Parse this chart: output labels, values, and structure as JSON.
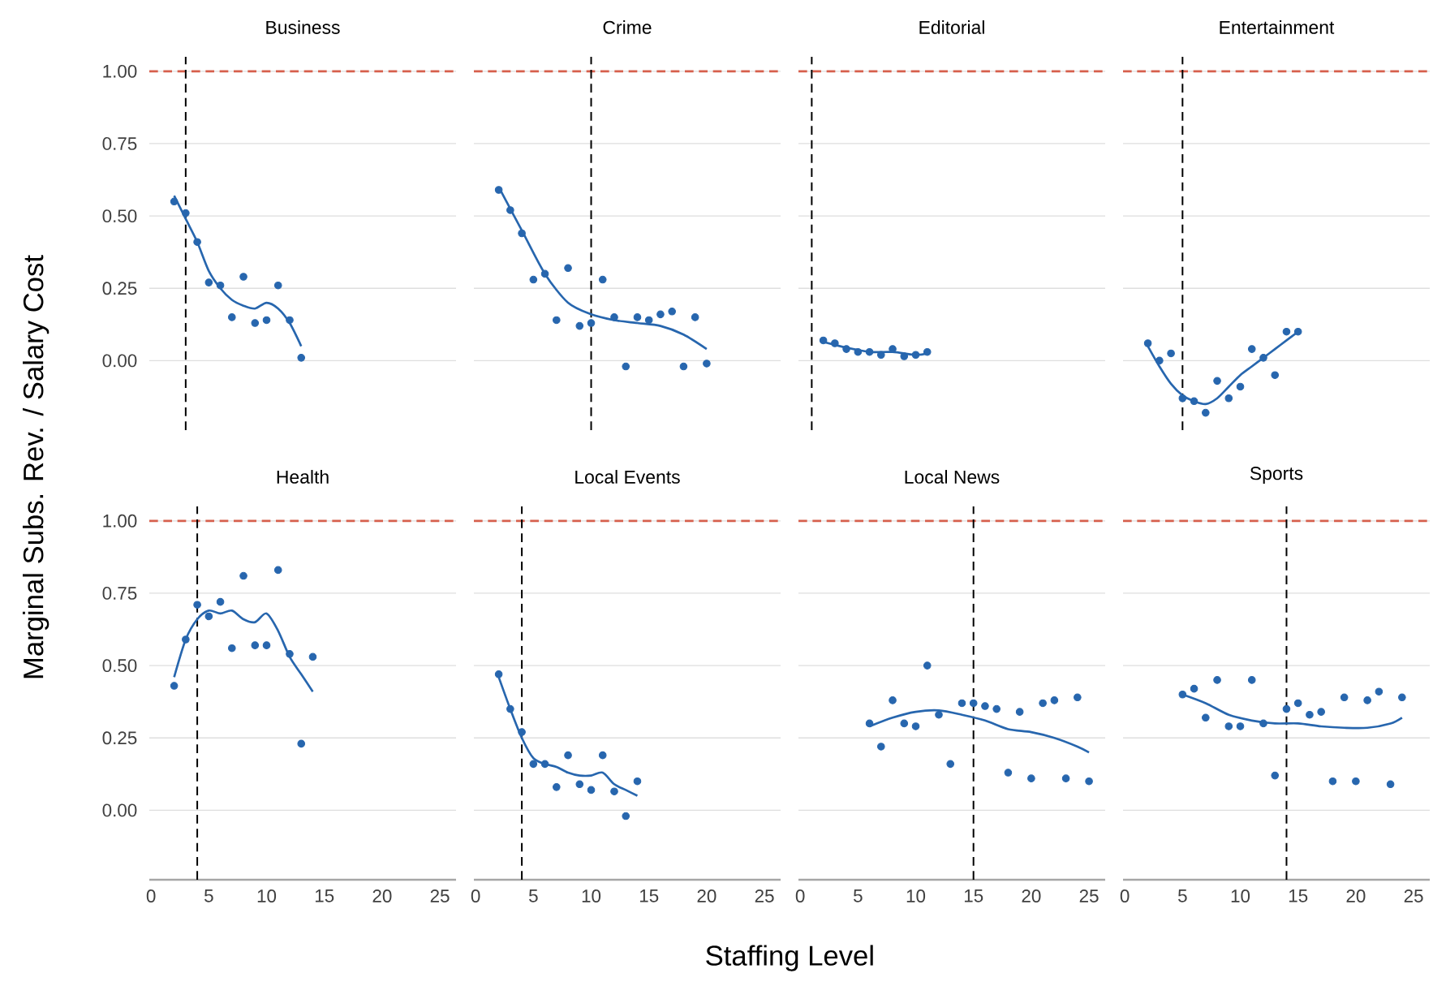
{
  "chart_data": [
    {
      "type": "scatter",
      "title": "Business",
      "ylabel": "Marginal Subs. Rev. / Salary Cost",
      "xlim": [
        -0.15,
        26.4
      ],
      "ylim": [
        -0.24,
        1.05
      ],
      "xticks": [
        0,
        5,
        10,
        15,
        20,
        25
      ],
      "yticks": [
        {
          "value": 0,
          "label": "0.00"
        },
        {
          "value": 0.25,
          "label": "0.25"
        },
        {
          "value": 0.5,
          "label": "0.50"
        },
        {
          "value": 0.75,
          "label": "0.75"
        },
        {
          "value": 1,
          "label": "1.00"
        }
      ],
      "grid": "y",
      "tick_labels": "y",
      "ref_lines": [
        {
          "axis": "y",
          "value": 1,
          "color": "#d6604d",
          "line_style": "dashed"
        },
        {
          "axis": "x",
          "value": 3,
          "color": "#000000",
          "line_style": "dashed"
        }
      ],
      "series": [
        {
          "type": "scatter",
          "color": "#2766ae",
          "marker": "circle",
          "x": [
            2,
            3,
            4,
            5,
            6,
            7,
            8,
            9,
            10,
            11,
            12,
            13
          ],
          "values": [
            0.55,
            0.51,
            0.41,
            0.27,
            0.26,
            0.15,
            0.29,
            0.13,
            0.14,
            0.26,
            0.14,
            0.01
          ]
        },
        {
          "type": "line",
          "color": "#2766ae",
          "marker": "none",
          "line_style": "solid",
          "x": [
            2,
            3,
            4,
            5,
            6,
            7,
            8,
            9,
            10,
            11,
            12,
            13
          ],
          "values": [
            0.57,
            0.49,
            0.41,
            0.31,
            0.25,
            0.21,
            0.19,
            0.18,
            0.2,
            0.18,
            0.13,
            0.05
          ]
        }
      ]
    },
    {
      "type": "scatter",
      "title": "Crime",
      "xlim": [
        -0.15,
        26.4
      ],
      "ylim": [
        -0.24,
        1.05
      ],
      "xticks": [
        0,
        5,
        10,
        15,
        20,
        25
      ],
      "yticks": [
        {
          "value": 0,
          "label": null
        },
        {
          "value": 0.25,
          "label": null
        },
        {
          "value": 0.5,
          "label": null
        },
        {
          "value": 0.75,
          "label": null
        },
        {
          "value": 1,
          "label": null
        }
      ],
      "grid": "y",
      "tick_labels": false,
      "ref_lines": [
        {
          "axis": "y",
          "value": 1,
          "color": "#d6604d",
          "line_style": "dashed"
        },
        {
          "axis": "x",
          "value": 10,
          "color": "#000000",
          "line_style": "dashed"
        }
      ],
      "series": [
        {
          "type": "scatter",
          "color": "#2766ae",
          "marker": "circle",
          "x": [
            2,
            3,
            4,
            5,
            6,
            7,
            8,
            9,
            10,
            11,
            12,
            13,
            14,
            15,
            16,
            17,
            18,
            19,
            20
          ],
          "values": [
            0.59,
            0.52,
            0.44,
            0.28,
            0.3,
            0.14,
            0.32,
            0.12,
            0.13,
            0.28,
            0.15,
            -0.02,
            0.15,
            0.14,
            0.16,
            0.17,
            -0.02,
            0.15,
            -0.01
          ]
        },
        {
          "type": "line",
          "color": "#2766ae",
          "marker": "none",
          "line_style": "solid",
          "x": [
            2,
            4,
            6,
            8,
            10,
            12,
            14,
            16,
            18,
            20
          ],
          "values": [
            0.6,
            0.45,
            0.3,
            0.2,
            0.16,
            0.14,
            0.13,
            0.12,
            0.09,
            0.04
          ]
        }
      ]
    },
    {
      "type": "scatter",
      "title": "Editorial",
      "xlim": [
        -0.15,
        26.4
      ],
      "ylim": [
        -0.24,
        1.05
      ],
      "xticks": [
        0,
        5,
        10,
        15,
        20,
        25
      ],
      "yticks": [
        {
          "value": 0,
          "label": null
        },
        {
          "value": 0.25,
          "label": null
        },
        {
          "value": 0.5,
          "label": null
        },
        {
          "value": 0.75,
          "label": null
        },
        {
          "value": 1,
          "label": null
        }
      ],
      "grid": "y",
      "tick_labels": false,
      "ref_lines": [
        {
          "axis": "y",
          "value": 1,
          "color": "#d6604d",
          "line_style": "dashed"
        },
        {
          "axis": "x",
          "value": 1,
          "color": "#000000",
          "line_style": "dashed"
        }
      ],
      "series": [
        {
          "type": "scatter",
          "color": "#2766ae",
          "marker": "circle",
          "x": [
            2,
            3,
            4,
            5,
            6,
            7,
            8,
            9,
            10,
            11
          ],
          "values": [
            0.07,
            0.06,
            0.04,
            0.03,
            0.03,
            0.02,
            0.04,
            0.015,
            0.02,
            0.03
          ]
        },
        {
          "type": "line",
          "color": "#2766ae",
          "marker": "none",
          "line_style": "solid",
          "x": [
            2,
            4,
            6,
            8,
            10,
            11
          ],
          "values": [
            0.065,
            0.045,
            0.03,
            0.03,
            0.02,
            0.025
          ]
        }
      ]
    },
    {
      "type": "scatter",
      "title": "Entertainment",
      "xlim": [
        -0.15,
        26.4
      ],
      "ylim": [
        -0.24,
        1.05
      ],
      "xticks": [
        0,
        5,
        10,
        15,
        20,
        25
      ],
      "yticks": [
        {
          "value": 0,
          "label": null
        },
        {
          "value": 0.25,
          "label": null
        },
        {
          "value": 0.5,
          "label": null
        },
        {
          "value": 0.75,
          "label": null
        },
        {
          "value": 1,
          "label": null
        }
      ],
      "grid": "y",
      "tick_labels": false,
      "ref_lines": [
        {
          "axis": "y",
          "value": 1,
          "color": "#d6604d",
          "line_style": "dashed"
        },
        {
          "axis": "x",
          "value": 5,
          "color": "#000000",
          "line_style": "dashed"
        }
      ],
      "series": [
        {
          "type": "scatter",
          "color": "#2766ae",
          "marker": "circle",
          "x": [
            2,
            3,
            4,
            5,
            6,
            7,
            8,
            9,
            10,
            11,
            12,
            13,
            14,
            15
          ],
          "values": [
            0.06,
            0.0,
            0.025,
            -0.13,
            -0.14,
            -0.18,
            -0.07,
            -0.13,
            -0.09,
            0.04,
            0.01,
            -0.05,
            0.1,
            0.1
          ]
        },
        {
          "type": "line",
          "color": "#2766ae",
          "marker": "none",
          "line_style": "solid",
          "x": [
            2,
            3,
            4,
            5,
            6,
            7,
            8,
            9,
            10,
            11,
            12,
            13,
            14,
            15
          ],
          "values": [
            0.05,
            -0.02,
            -0.08,
            -0.12,
            -0.14,
            -0.15,
            -0.13,
            -0.09,
            -0.05,
            -0.02,
            0.01,
            0.04,
            0.07,
            0.1
          ]
        }
      ]
    },
    {
      "type": "scatter",
      "title": "Health",
      "xlim": [
        -0.15,
        26.4
      ],
      "ylim": [
        -0.24,
        1.05
      ],
      "xticks": [
        0,
        5,
        10,
        15,
        20,
        25
      ],
      "yticks": [
        {
          "value": 0,
          "label": "0.00"
        },
        {
          "value": 0.25,
          "label": "0.25"
        },
        {
          "value": 0.5,
          "label": "0.50"
        },
        {
          "value": 0.75,
          "label": "0.75"
        },
        {
          "value": 1,
          "label": "1.00"
        }
      ],
      "grid": "y",
      "ref_lines": [
        {
          "axis": "y",
          "value": 1,
          "color": "#d6604d",
          "line_style": "dashed"
        },
        {
          "axis": "x",
          "value": 4,
          "color": "#000000",
          "line_style": "dashed"
        }
      ],
      "series": [
        {
          "type": "scatter",
          "color": "#2766ae",
          "marker": "circle",
          "x": [
            2,
            3,
            4,
            5,
            6,
            7,
            8,
            9,
            10,
            11,
            12,
            13,
            14
          ],
          "values": [
            0.43,
            0.59,
            0.71,
            0.67,
            0.72,
            0.56,
            0.81,
            0.57,
            0.57,
            0.83,
            0.54,
            0.23,
            0.53
          ]
        },
        {
          "type": "line",
          "color": "#2766ae",
          "marker": "none",
          "line_style": "solid",
          "x": [
            2,
            3,
            4,
            5,
            6,
            7,
            8,
            9,
            10,
            11,
            12,
            13,
            14
          ],
          "values": [
            0.46,
            0.59,
            0.66,
            0.69,
            0.68,
            0.69,
            0.66,
            0.65,
            0.68,
            0.62,
            0.53,
            0.47,
            0.41
          ]
        }
      ]
    },
    {
      "type": "scatter",
      "title": "Local Events",
      "xlabel": "Staffing Level",
      "xlim": [
        -0.15,
        26.4
      ],
      "ylim": [
        -0.24,
        1.05
      ],
      "xticks": [
        0,
        5,
        10,
        15,
        20,
        25
      ],
      "yticks": [
        {
          "value": 0,
          "label": null
        },
        {
          "value": 0.25,
          "label": null
        },
        {
          "value": 0.5,
          "label": null
        },
        {
          "value": 0.75,
          "label": null
        },
        {
          "value": 1,
          "label": null
        }
      ],
      "grid": "y",
      "tick_labels": "x",
      "ref_lines": [
        {
          "axis": "y",
          "value": 1,
          "color": "#d6604d",
          "line_style": "dashed"
        },
        {
          "axis": "x",
          "value": 4,
          "color": "#000000",
          "line_style": "dashed"
        }
      ],
      "series": [
        {
          "type": "scatter",
          "color": "#2766ae",
          "marker": "circle",
          "x": [
            2,
            3,
            4,
            5,
            6,
            7,
            8,
            9,
            10,
            11,
            12,
            13,
            14
          ],
          "values": [
            0.47,
            0.35,
            0.27,
            0.16,
            0.16,
            0.08,
            0.19,
            0.09,
            0.07,
            0.19,
            0.065,
            -0.02,
            0.1
          ]
        },
        {
          "type": "line",
          "color": "#2766ae",
          "marker": "none",
          "line_style": "solid",
          "x": [
            2,
            3,
            4,
            5,
            6,
            7,
            8,
            9,
            10,
            11,
            12,
            13,
            14
          ],
          "values": [
            0.46,
            0.35,
            0.25,
            0.18,
            0.16,
            0.15,
            0.13,
            0.12,
            0.12,
            0.13,
            0.09,
            0.07,
            0.05
          ]
        }
      ]
    },
    {
      "type": "scatter",
      "title": "Local News",
      "xlim": [
        -0.15,
        26.4
      ],
      "ylim": [
        -0.24,
        1.05
      ],
      "xticks": [
        0,
        5,
        10,
        15,
        20,
        25
      ],
      "yticks": [
        {
          "value": 0,
          "label": null
        },
        {
          "value": 0.25,
          "label": null
        },
        {
          "value": 0.5,
          "label": null
        },
        {
          "value": 0.75,
          "label": null
        },
        {
          "value": 1,
          "label": null
        }
      ],
      "grid": "y",
      "tick_labels": "x",
      "ref_lines": [
        {
          "axis": "y",
          "value": 1,
          "color": "#d6604d",
          "line_style": "dashed"
        },
        {
          "axis": "x",
          "value": 15,
          "color": "#000000",
          "line_style": "dashed"
        }
      ],
      "series": [
        {
          "type": "scatter",
          "color": "#2766ae",
          "marker": "circle",
          "x": [
            6,
            7,
            8,
            9,
            10,
            11,
            12,
            13,
            14,
            15,
            16,
            17,
            18,
            19,
            20,
            21,
            22,
            23,
            24,
            25
          ],
          "values": [
            0.3,
            0.22,
            0.38,
            0.3,
            0.29,
            0.5,
            0.33,
            0.16,
            0.37,
            0.37,
            0.36,
            0.35,
            0.13,
            0.34,
            0.11,
            0.37,
            0.38,
            0.11,
            0.39,
            0.1
          ]
        },
        {
          "type": "line",
          "color": "#2766ae",
          "marker": "none",
          "line_style": "solid",
          "x": [
            6,
            8,
            10,
            12,
            14,
            16,
            18,
            20,
            22,
            24,
            25
          ],
          "values": [
            0.29,
            0.32,
            0.34,
            0.345,
            0.33,
            0.31,
            0.28,
            0.27,
            0.25,
            0.22,
            0.2
          ]
        }
      ]
    },
    {
      "type": "scatter",
      "title": "Sports",
      "xlim": [
        -0.15,
        26.4
      ],
      "ylim": [
        -0.24,
        1.05
      ],
      "xticks": [
        0,
        5,
        10,
        15,
        20,
        25
      ],
      "yticks": [
        {
          "value": 0,
          "label": null
        },
        {
          "value": 0.25,
          "label": null
        },
        {
          "value": 0.5,
          "label": null
        },
        {
          "value": 0.75,
          "label": null
        },
        {
          "value": 1,
          "label": null
        }
      ],
      "grid": "y",
      "tick_labels": "x",
      "ref_lines": [
        {
          "axis": "y",
          "value": 1,
          "color": "#d6604d",
          "line_style": "dashed"
        },
        {
          "axis": "x",
          "value": 14,
          "color": "#000000",
          "line_style": "dashed"
        }
      ],
      "series": [
        {
          "type": "scatter",
          "color": "#2766ae",
          "marker": "circle",
          "x": [
            5,
            6,
            7,
            8,
            9,
            10,
            11,
            12,
            13,
            14,
            15,
            16,
            17,
            18,
            19,
            20,
            21,
            22,
            23,
            24
          ],
          "values": [
            0.4,
            0.42,
            0.32,
            0.45,
            0.29,
            0.29,
            0.45,
            0.3,
            0.12,
            0.35,
            0.37,
            0.33,
            0.34,
            0.1,
            0.39,
            0.1,
            0.38,
            0.41,
            0.09,
            0.39
          ]
        },
        {
          "type": "line",
          "color": "#2766ae",
          "marker": "none",
          "line_style": "solid",
          "x": [
            5,
            7,
            9,
            11,
            13,
            15,
            17,
            19,
            21,
            23,
            24
          ],
          "values": [
            0.4,
            0.37,
            0.33,
            0.31,
            0.3,
            0.3,
            0.29,
            0.285,
            0.285,
            0.3,
            0.32
          ]
        }
      ]
    }
  ]
}
